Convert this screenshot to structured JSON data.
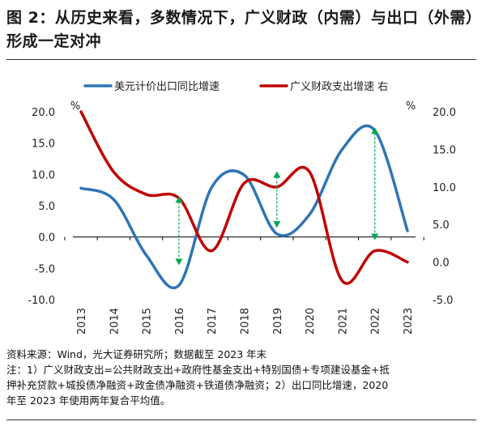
{
  "figure": {
    "title": "图 2：从历史来看，多数情况下，广义财政（内需）与出口（外需）形成一定对冲",
    "source": "资料来源：Wind，光大证券研究所；数据截至 2023 年末",
    "note_line1": "注：1）广义财政支出=公共财政支出+政府性基金支出+特别国债+专项建设基金+抵",
    "note_line2": "押补充贷款+城投债净融资+政金债净融资+铁道债净融资；2）出口同比增速，2020",
    "note_line3": "年至 2023 年使用两年复合平均值。"
  },
  "chart_data": {
    "type": "line",
    "categories": [
      "2013",
      "2014",
      "2015",
      "2016",
      "2017",
      "2018",
      "2019",
      "2020",
      "2021",
      "2022",
      "2023"
    ],
    "series": [
      {
        "name": "美元计价出口同比增速",
        "axis": "left",
        "color": "#2e75b6",
        "values": [
          7.8,
          6.0,
          -2.9,
          -7.7,
          7.9,
          9.9,
          0.5,
          3.6,
          14.0,
          17.0,
          1.0
        ]
      },
      {
        "name": "广义财政支出增速 右",
        "axis": "right",
        "color": "#c00000",
        "values": [
          20.0,
          12.0,
          9.0,
          8.5,
          1.5,
          10.5,
          10.0,
          12.0,
          -2.5,
          1.5,
          0.0
        ]
      }
    ],
    "left_axis": {
      "unit": "%",
      "ylim": [
        -10,
        20
      ],
      "ticks": [
        "20.0",
        "15.0",
        "10.0",
        "5.0",
        "0.0",
        "-5.0",
        "-10.0"
      ]
    },
    "right_axis": {
      "unit": "%",
      "ylim": [
        -5,
        20
      ],
      "ticks": [
        "20.0",
        "15.0",
        "10.0",
        "5.0",
        "0.0",
        "-5.0"
      ]
    },
    "arrows": [
      {
        "category": "2016",
        "from": -4.5,
        "to": 6.5
      },
      {
        "category": "2019",
        "from": 1.5,
        "to": 10.5
      },
      {
        "category": "2022",
        "from": -0.5,
        "to": 17.5
      }
    ],
    "arrow_color": "#00a650",
    "legend_position": "top",
    "grid": false
  }
}
